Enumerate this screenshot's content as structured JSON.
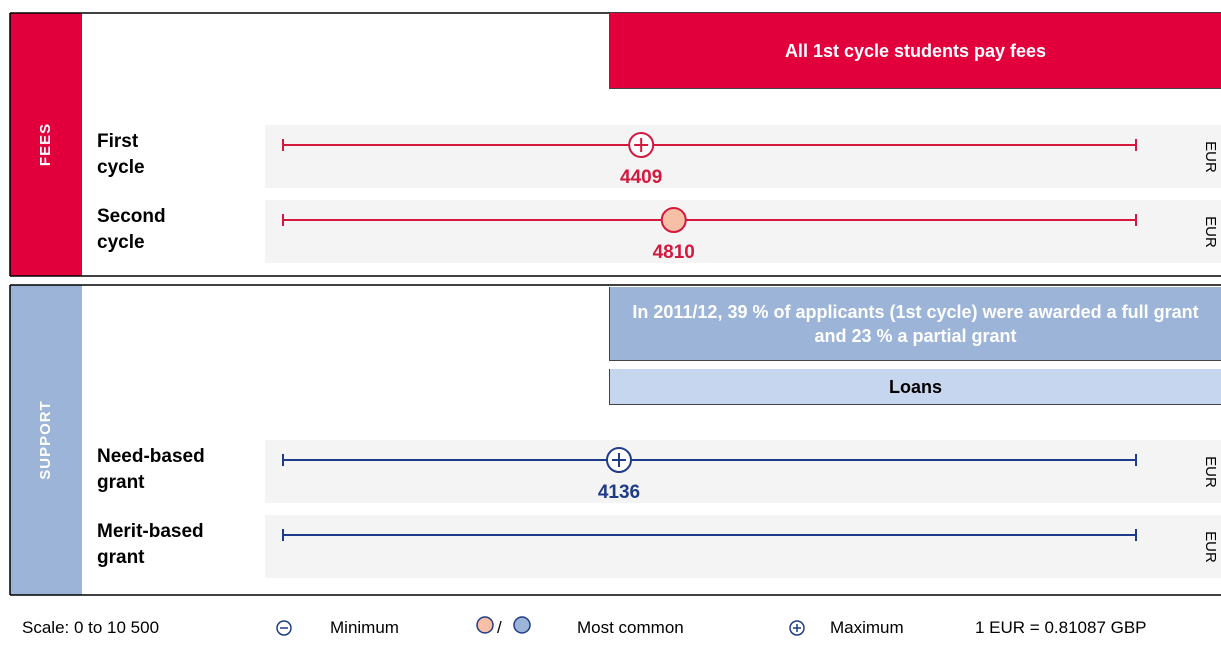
{
  "scale": [
    0,
    10500
  ],
  "sections": [
    {
      "label": "FEES",
      "color": "#e2003c",
      "line_color": "#d31a3e",
      "banners": [
        {
          "text": "All 1st cycle students pay fees",
          "color": "#e2003c",
          "text_color": "#ffffff"
        }
      ],
      "rows": [
        {
          "label": "First cycle",
          "value": 4409,
          "marker": "maximum",
          "unit": "EUR"
        },
        {
          "label": "Second cycle",
          "value": 4810,
          "marker": "most-common",
          "unit": "EUR"
        }
      ]
    },
    {
      "label": "SUPPORT",
      "color": "#9cb4d8",
      "line_color": "#1f3c8a",
      "banners": [
        {
          "text": "In 2011/12, 39 % of applicants (1st cycle) were awarded a full grant and 23 % a partial grant",
          "color": "#9cb4d8",
          "text_color": "#ffffff"
        },
        {
          "text": "Loans",
          "color": "#c6d6ee",
          "text_color": "#000000"
        }
      ],
      "rows": [
        {
          "label": "Need-based grant",
          "value": 4136,
          "marker": "maximum",
          "unit": "EUR"
        },
        {
          "label": "Merit-based grant",
          "value": null,
          "marker": null,
          "unit": "EUR"
        }
      ]
    }
  ],
  "legend": {
    "scale": "Scale: 0 to 10 500",
    "minimum": "Minimum",
    "separator": "/",
    "most_common": "Most common",
    "maximum": "Maximum",
    "exchange": "1 EUR = 0.81087 GBP"
  }
}
